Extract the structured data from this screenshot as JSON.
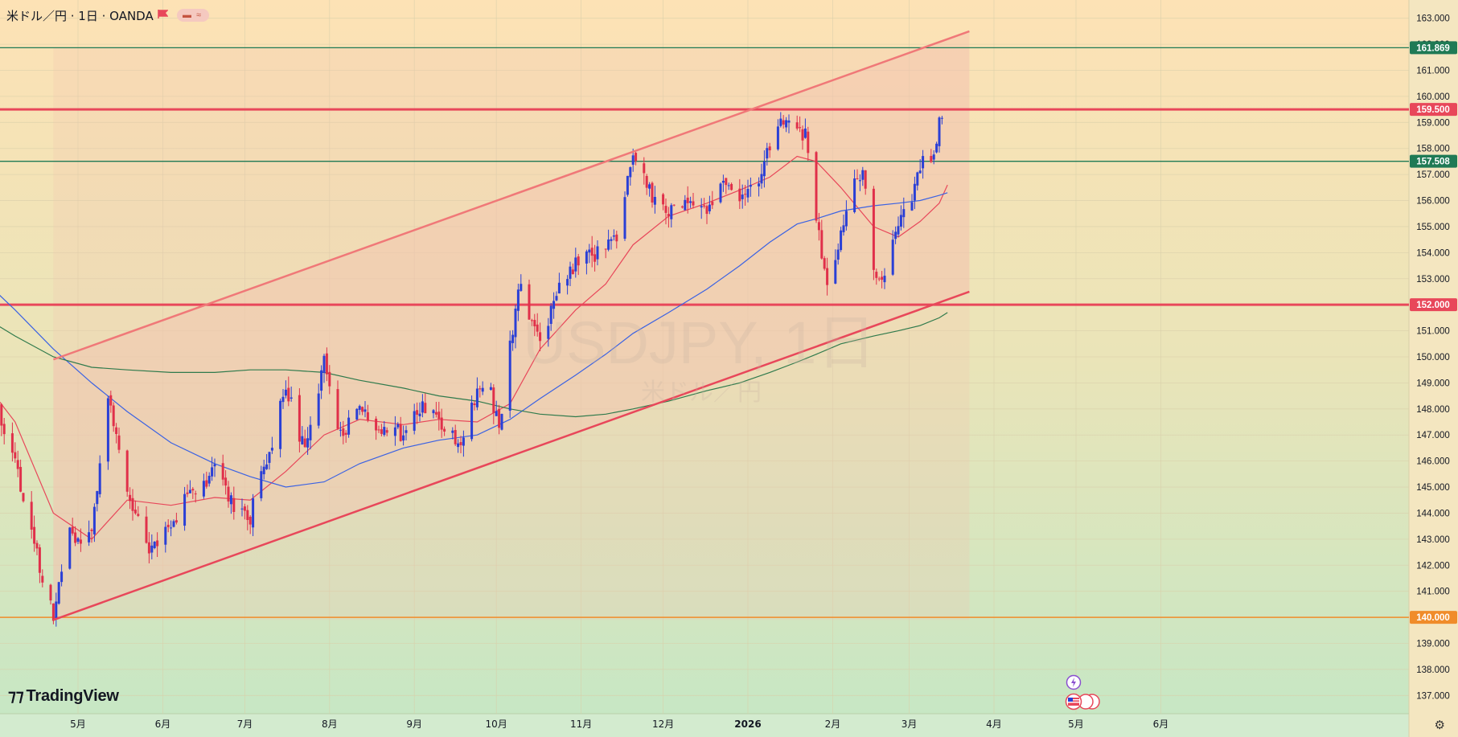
{
  "header": {
    "symbol_title": "米ドル／円 · 1日 · OANDA"
  },
  "watermark": {
    "symbol": "USDJPY, 1日",
    "name": "米ドル／円"
  },
  "brand": {
    "logo_text": "TradingView",
    "logo_icon": "tradingview-logo-icon"
  },
  "icons": {
    "settings": "gear-icon",
    "lightning": "lightning-icon",
    "flags": "us-flag-icon"
  },
  "colors": {
    "up_candle": "#2a3fd6",
    "down_candle": "#e0304a",
    "channel_line": "#f07878",
    "channel_lower": "#e8475a",
    "resistance": "#e8475a",
    "green_level": "#1f7a55",
    "orange_level": "#f08c2a",
    "ma_red": "#e8475a",
    "ma_blue": "#3b62e3",
    "ma_green": "#2f7a4c"
  },
  "chart_data": {
    "type": "candlestick",
    "title": "米ドル／円 · 1日 · OANDA",
    "y_axis": {
      "range": [
        136.3,
        163.7
      ],
      "ticks": [
        "163.000",
        "162.000",
        "161.000",
        "160.000",
        "159.000",
        "158.000",
        "157.000",
        "156.000",
        "155.000",
        "154.000",
        "153.000",
        "152.000",
        "151.000",
        "150.000",
        "149.000",
        "148.000",
        "147.000",
        "146.000",
        "145.000",
        "144.000",
        "143.000",
        "142.000",
        "141.000",
        "140.000",
        "139.000",
        "138.000",
        "137.000"
      ]
    },
    "x_axis": {
      "ticks": [
        {
          "label": "5月",
          "date": "2025-05-01"
        },
        {
          "label": "6月",
          "date": "2025-06-01"
        },
        {
          "label": "7月",
          "date": "2025-07-01"
        },
        {
          "label": "8月",
          "date": "2025-08-01"
        },
        {
          "label": "9月",
          "date": "2025-09-01"
        },
        {
          "label": "10月",
          "date": "2025-10-01"
        },
        {
          "label": "11月",
          "date": "2025-11-01"
        },
        {
          "label": "12月",
          "date": "2025-12-01"
        },
        {
          "label": "2026",
          "date": "2026-01-01"
        },
        {
          "label": "2月",
          "date": "2026-02-01"
        },
        {
          "label": "3月",
          "date": "2026-03-01"
        },
        {
          "label": "4月",
          "date": "2026-04-01"
        },
        {
          "label": "5月",
          "date": "2026-05-01"
        },
        {
          "label": "6月",
          "date": "2026-06-01"
        }
      ]
    },
    "horizontal_levels": [
      {
        "value": 161.869,
        "label": "161.869",
        "color": "#1f7a55"
      },
      {
        "value": 159.5,
        "label": "159.500",
        "color": "#e8475a"
      },
      {
        "value": 157.508,
        "label": "157.508",
        "color": "#1f7a55"
      },
      {
        "value": 152.0,
        "label": "152.000",
        "color": "#e8475a"
      },
      {
        "value": 140.0,
        "label": "140.000",
        "color": "#f08c2a"
      }
    ],
    "channel": {
      "upper": [
        {
          "date": "2025-04-22",
          "value": 149.9
        },
        {
          "date": "2026-03-23",
          "value": 162.5
        }
      ],
      "lower": [
        {
          "date": "2025-04-22",
          "value": 139.9
        },
        {
          "date": "2026-03-23",
          "value": 152.5
        }
      ]
    },
    "anchors": [
      {
        "date": "2025-03-28",
        "value": 149.0
      },
      {
        "date": "2025-04-01",
        "value": 148.3
      },
      {
        "date": "2025-04-08",
        "value": 146.0
      },
      {
        "date": "2025-04-15",
        "value": 142.8
      },
      {
        "date": "2025-04-22",
        "value": 140.1
      },
      {
        "date": "2025-04-28",
        "value": 143.2
      },
      {
        "date": "2025-05-06",
        "value": 143.0
      },
      {
        "date": "2025-05-12",
        "value": 148.4
      },
      {
        "date": "2025-05-19",
        "value": 145.0
      },
      {
        "date": "2025-05-27",
        "value": 142.6
      },
      {
        "date": "2025-06-04",
        "value": 143.5
      },
      {
        "date": "2025-06-11",
        "value": 144.8
      },
      {
        "date": "2025-06-20",
        "value": 145.6
      },
      {
        "date": "2025-06-27",
        "value": 144.3
      },
      {
        "date": "2025-07-03",
        "value": 143.9
      },
      {
        "date": "2025-07-10",
        "value": 146.4
      },
      {
        "date": "2025-07-16",
        "value": 148.8
      },
      {
        "date": "2025-07-23",
        "value": 146.4
      },
      {
        "date": "2025-07-30",
        "value": 149.8
      },
      {
        "date": "2025-08-04",
        "value": 147.0
      },
      {
        "date": "2025-08-12",
        "value": 147.8
      },
      {
        "date": "2025-08-20",
        "value": 147.3
      },
      {
        "date": "2025-08-28",
        "value": 147.0
      },
      {
        "date": "2025-09-04",
        "value": 148.2
      },
      {
        "date": "2025-09-10",
        "value": 147.4
      },
      {
        "date": "2025-09-17",
        "value": 146.6
      },
      {
        "date": "2025-09-24",
        "value": 148.8
      },
      {
        "date": "2025-09-29",
        "value": 148.6
      },
      {
        "date": "2025-10-02",
        "value": 147.2
      },
      {
        "date": "2025-10-06",
        "value": 150.3
      },
      {
        "date": "2025-10-10",
        "value": 152.9
      },
      {
        "date": "2025-10-14",
        "value": 151.3
      },
      {
        "date": "2025-10-17",
        "value": 150.5
      },
      {
        "date": "2025-10-24",
        "value": 152.8
      },
      {
        "date": "2025-10-30",
        "value": 153.5
      },
      {
        "date": "2025-11-04",
        "value": 153.8
      },
      {
        "date": "2025-11-10",
        "value": 154.2
      },
      {
        "date": "2025-11-14",
        "value": 154.7
      },
      {
        "date": "2025-11-20",
        "value": 157.6
      },
      {
        "date": "2025-11-26",
        "value": 156.4
      },
      {
        "date": "2025-12-03",
        "value": 155.4
      },
      {
        "date": "2025-12-08",
        "value": 155.9
      },
      {
        "date": "2025-12-12",
        "value": 155.8
      },
      {
        "date": "2025-12-17",
        "value": 155.4
      },
      {
        "date": "2025-12-22",
        "value": 156.6
      },
      {
        "date": "2025-12-29",
        "value": 156.3
      },
      {
        "date": "2026-01-05",
        "value": 156.8
      },
      {
        "date": "2026-01-09",
        "value": 158.0
      },
      {
        "date": "2026-01-14",
        "value": 159.0
      },
      {
        "date": "2026-01-19",
        "value": 158.5
      },
      {
        "date": "2026-01-22",
        "value": 158.7
      },
      {
        "date": "2026-01-26",
        "value": 155.2
      },
      {
        "date": "2026-01-30",
        "value": 152.5
      },
      {
        "date": "2026-02-04",
        "value": 154.8
      },
      {
        "date": "2026-02-09",
        "value": 156.6
      },
      {
        "date": "2026-02-12",
        "value": 157.2
      },
      {
        "date": "2026-02-16",
        "value": 153.2
      },
      {
        "date": "2026-02-20",
        "value": 152.9
      },
      {
        "date": "2026-02-25",
        "value": 155.0
      },
      {
        "date": "2026-03-02",
        "value": 155.9
      },
      {
        "date": "2026-03-05",
        "value": 157.5
      },
      {
        "date": "2026-03-09",
        "value": 157.4
      },
      {
        "date": "2026-03-12",
        "value": 159.0
      },
      {
        "date": "2026-03-15",
        "value": 159.7
      }
    ],
    "moving_averages": [
      {
        "color": "#e8475a",
        "points": [
          [
            "2025-03-28",
            149.0
          ],
          [
            "2025-04-08",
            147.5
          ],
          [
            "2025-04-22",
            144.0
          ],
          [
            "2025-05-06",
            143.0
          ],
          [
            "2025-05-19",
            144.5
          ],
          [
            "2025-06-04",
            144.3
          ],
          [
            "2025-06-20",
            144.6
          ],
          [
            "2025-07-03",
            144.5
          ],
          [
            "2025-07-16",
            145.6
          ],
          [
            "2025-07-30",
            147.0
          ],
          [
            "2025-08-12",
            147.6
          ],
          [
            "2025-08-28",
            147.4
          ],
          [
            "2025-09-10",
            147.6
          ],
          [
            "2025-09-24",
            147.5
          ],
          [
            "2025-10-06",
            148.2
          ],
          [
            "2025-10-17",
            150.3
          ],
          [
            "2025-10-30",
            151.8
          ],
          [
            "2025-11-10",
            152.8
          ],
          [
            "2025-11-20",
            154.3
          ],
          [
            "2025-12-03",
            155.4
          ],
          [
            "2025-12-17",
            155.9
          ],
          [
            "2025-12-29",
            156.4
          ],
          [
            "2026-01-09",
            156.9
          ],
          [
            "2026-01-19",
            157.7
          ],
          [
            "2026-01-26",
            157.5
          ],
          [
            "2026-02-04",
            156.5
          ],
          [
            "2026-02-16",
            155.0
          ],
          [
            "2026-02-25",
            154.6
          ],
          [
            "2026-03-05",
            155.2
          ],
          [
            "2026-03-12",
            155.9
          ],
          [
            "2026-03-15",
            156.6
          ]
        ]
      },
      {
        "color": "#3b62e3",
        "points": [
          [
            "2025-03-28",
            152.9
          ],
          [
            "2025-04-08",
            151.8
          ],
          [
            "2025-04-22",
            150.3
          ],
          [
            "2025-05-06",
            149.0
          ],
          [
            "2025-05-19",
            147.9
          ],
          [
            "2025-06-04",
            146.7
          ],
          [
            "2025-06-20",
            145.9
          ],
          [
            "2025-07-03",
            145.4
          ],
          [
            "2025-07-16",
            145.0
          ],
          [
            "2025-07-30",
            145.2
          ],
          [
            "2025-08-12",
            145.9
          ],
          [
            "2025-08-28",
            146.5
          ],
          [
            "2025-09-10",
            146.8
          ],
          [
            "2025-09-24",
            147.0
          ],
          [
            "2025-10-06",
            147.6
          ],
          [
            "2025-10-17",
            148.4
          ],
          [
            "2025-10-30",
            149.3
          ],
          [
            "2025-11-10",
            150.1
          ],
          [
            "2025-11-20",
            150.9
          ],
          [
            "2025-12-03",
            151.7
          ],
          [
            "2025-12-17",
            152.6
          ],
          [
            "2025-12-29",
            153.5
          ],
          [
            "2026-01-09",
            154.4
          ],
          [
            "2026-01-19",
            155.1
          ],
          [
            "2026-01-26",
            155.3
          ],
          [
            "2026-02-04",
            155.6
          ],
          [
            "2026-02-16",
            155.8
          ],
          [
            "2026-02-25",
            155.9
          ],
          [
            "2026-03-05",
            156.0
          ],
          [
            "2026-03-12",
            156.2
          ],
          [
            "2026-03-15",
            156.3
          ]
        ]
      },
      {
        "color": "#2f7a4c",
        "points": [
          [
            "2025-03-28",
            151.5
          ],
          [
            "2025-04-08",
            150.8
          ],
          [
            "2025-04-22",
            150.0
          ],
          [
            "2025-05-06",
            149.6
          ],
          [
            "2025-05-19",
            149.5
          ],
          [
            "2025-06-04",
            149.4
          ],
          [
            "2025-06-20",
            149.4
          ],
          [
            "2025-07-03",
            149.5
          ],
          [
            "2025-07-16",
            149.5
          ],
          [
            "2025-07-30",
            149.4
          ],
          [
            "2025-08-12",
            149.1
          ],
          [
            "2025-08-28",
            148.8
          ],
          [
            "2025-09-10",
            148.5
          ],
          [
            "2025-09-24",
            148.3
          ],
          [
            "2025-10-06",
            148.0
          ],
          [
            "2025-10-17",
            147.8
          ],
          [
            "2025-10-30",
            147.7
          ],
          [
            "2025-11-10",
            147.8
          ],
          [
            "2025-11-20",
            148.0
          ],
          [
            "2025-12-03",
            148.3
          ],
          [
            "2025-12-17",
            148.7
          ],
          [
            "2025-12-29",
            149.0
          ],
          [
            "2026-01-09",
            149.4
          ],
          [
            "2026-01-19",
            149.8
          ],
          [
            "2026-01-26",
            150.1
          ],
          [
            "2026-02-04",
            150.5
          ],
          [
            "2026-02-16",
            150.8
          ],
          [
            "2026-02-25",
            151.0
          ],
          [
            "2026-03-05",
            151.2
          ],
          [
            "2026-03-12",
            151.5
          ],
          [
            "2026-03-15",
            151.7
          ]
        ]
      }
    ]
  }
}
